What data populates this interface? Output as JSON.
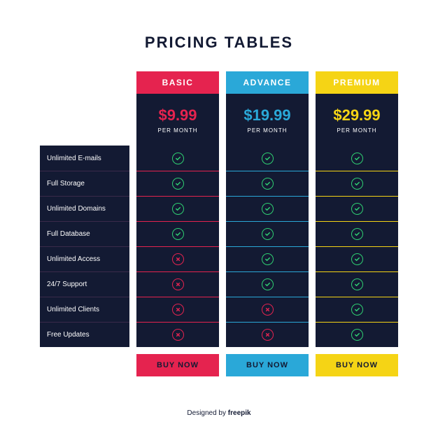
{
  "title": "PRICING TABLES",
  "colors": {
    "dark": "#131a33",
    "check": "#2fd072",
    "cross": "#e5234f",
    "feature_divider": "#3a2a4a"
  },
  "features": [
    "Unlimited E-mails",
    "Full Storage",
    "Unlimited Domains",
    "Full Database",
    "Unlimited Access",
    "24/7 Support",
    "Unlimited Clients",
    "Free Updates"
  ],
  "plans": [
    {
      "name": "BASIC",
      "price": "$9.99",
      "period": "PER MONTH",
      "accent": "#e5234f",
      "values": [
        true,
        true,
        true,
        true,
        false,
        false,
        false,
        false
      ],
      "buy": "BUY NOW"
    },
    {
      "name": "ADVANCE",
      "price": "$19.99",
      "period": "PER MONTH",
      "accent": "#2aa8d8",
      "values": [
        true,
        true,
        true,
        true,
        true,
        true,
        false,
        false
      ],
      "buy": "BUY NOW"
    },
    {
      "name": "PREMIUM",
      "price": "$29.99",
      "period": "PER MONTH",
      "accent": "#f5d415",
      "values": [
        true,
        true,
        true,
        true,
        true,
        true,
        true,
        true
      ],
      "buy": "BUY NOW"
    }
  ],
  "attribution_prefix": "Designed by ",
  "attribution_name": "freepik"
}
